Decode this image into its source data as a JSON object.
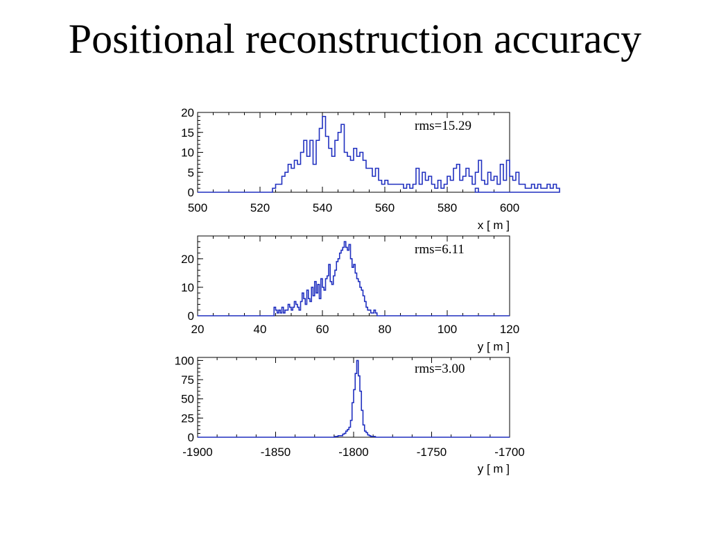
{
  "slide": {
    "title": "Positional reconstruction accuracy"
  },
  "chart_data": [
    {
      "type": "histogram",
      "xlabel": "x [ m ]",
      "annotation": "rms=15.29",
      "xlim": [
        500,
        600
      ],
      "ylim": [
        0,
        20
      ],
      "x_ticks": [
        500,
        520,
        540,
        560,
        580,
        600
      ],
      "y_ticks": [
        0,
        5,
        10,
        15,
        20
      ],
      "line_color": "#1f2fbf",
      "bin_width": 1,
      "bin_start": 524,
      "counts": [
        1,
        2,
        2,
        4,
        5,
        7,
        6,
        8,
        7,
        10,
        13,
        9,
        13,
        7,
        13,
        16,
        19,
        14,
        11,
        9,
        13,
        15,
        17,
        10,
        9,
        8,
        11,
        9,
        10,
        8,
        6,
        6,
        4,
        6,
        3,
        2,
        3,
        2,
        2,
        2,
        2,
        2,
        1,
        2,
        1,
        2,
        6,
        2,
        5,
        3,
        4,
        2,
        1,
        3,
        1,
        2,
        4,
        3,
        6,
        7,
        3,
        4,
        6,
        4,
        2,
        5,
        8,
        3,
        2,
        5,
        3,
        4,
        2,
        7,
        3,
        8,
        4,
        3,
        5,
        2,
        2,
        1,
        1,
        2,
        1,
        2,
        1,
        1,
        2,
        1,
        2,
        1
      ],
      "extra_bins": [
        {
          "x": 589,
          "count": 1
        }
      ]
    },
    {
      "type": "histogram",
      "xlabel": "y [ m ]",
      "annotation": "rms=6.11",
      "xlim": [
        20,
        120
      ],
      "ylim": [
        0,
        28
      ],
      "x_ticks": [
        20,
        40,
        60,
        80,
        100,
        120
      ],
      "y_ticks": [
        0,
        10,
        20
      ],
      "line_color": "#1f2fbf",
      "bin_width": 0.5,
      "bin_start": 44.5,
      "counts": [
        3,
        2,
        1,
        2,
        1,
        3,
        1,
        2,
        2,
        4,
        3,
        2,
        3,
        5,
        4,
        3,
        2,
        5,
        8,
        6,
        4,
        9,
        6,
        5,
        10,
        7,
        12,
        8,
        11,
        6,
        13,
        10,
        9,
        13,
        14,
        18,
        12,
        11,
        14,
        16,
        19,
        20,
        22,
        23,
        24,
        26,
        24,
        23,
        25,
        20,
        17,
        18,
        15,
        13,
        12,
        10,
        9,
        7,
        5,
        3,
        2,
        2,
        1,
        1,
        2,
        1
      ]
    },
    {
      "type": "histogram",
      "xlabel": "y [ m ]",
      "annotation": "rms=3.00",
      "xlim": [
        -1900,
        -1700
      ],
      "ylim": [
        0,
        104
      ],
      "x_ticks": [
        -1900,
        -1850,
        -1800,
        -1750,
        -1700
      ],
      "y_ticks": [
        0,
        25,
        50,
        75,
        100
      ],
      "line_color": "#1f2fbf",
      "bin_width": 1,
      "bin_start": -1812,
      "counts": [
        1,
        1,
        2,
        2,
        2,
        4,
        5,
        8,
        10,
        13,
        22,
        45,
        62,
        83,
        100,
        80,
        60,
        35,
        16,
        8,
        6,
        3,
        2,
        1,
        1,
        1
      ]
    }
  ]
}
